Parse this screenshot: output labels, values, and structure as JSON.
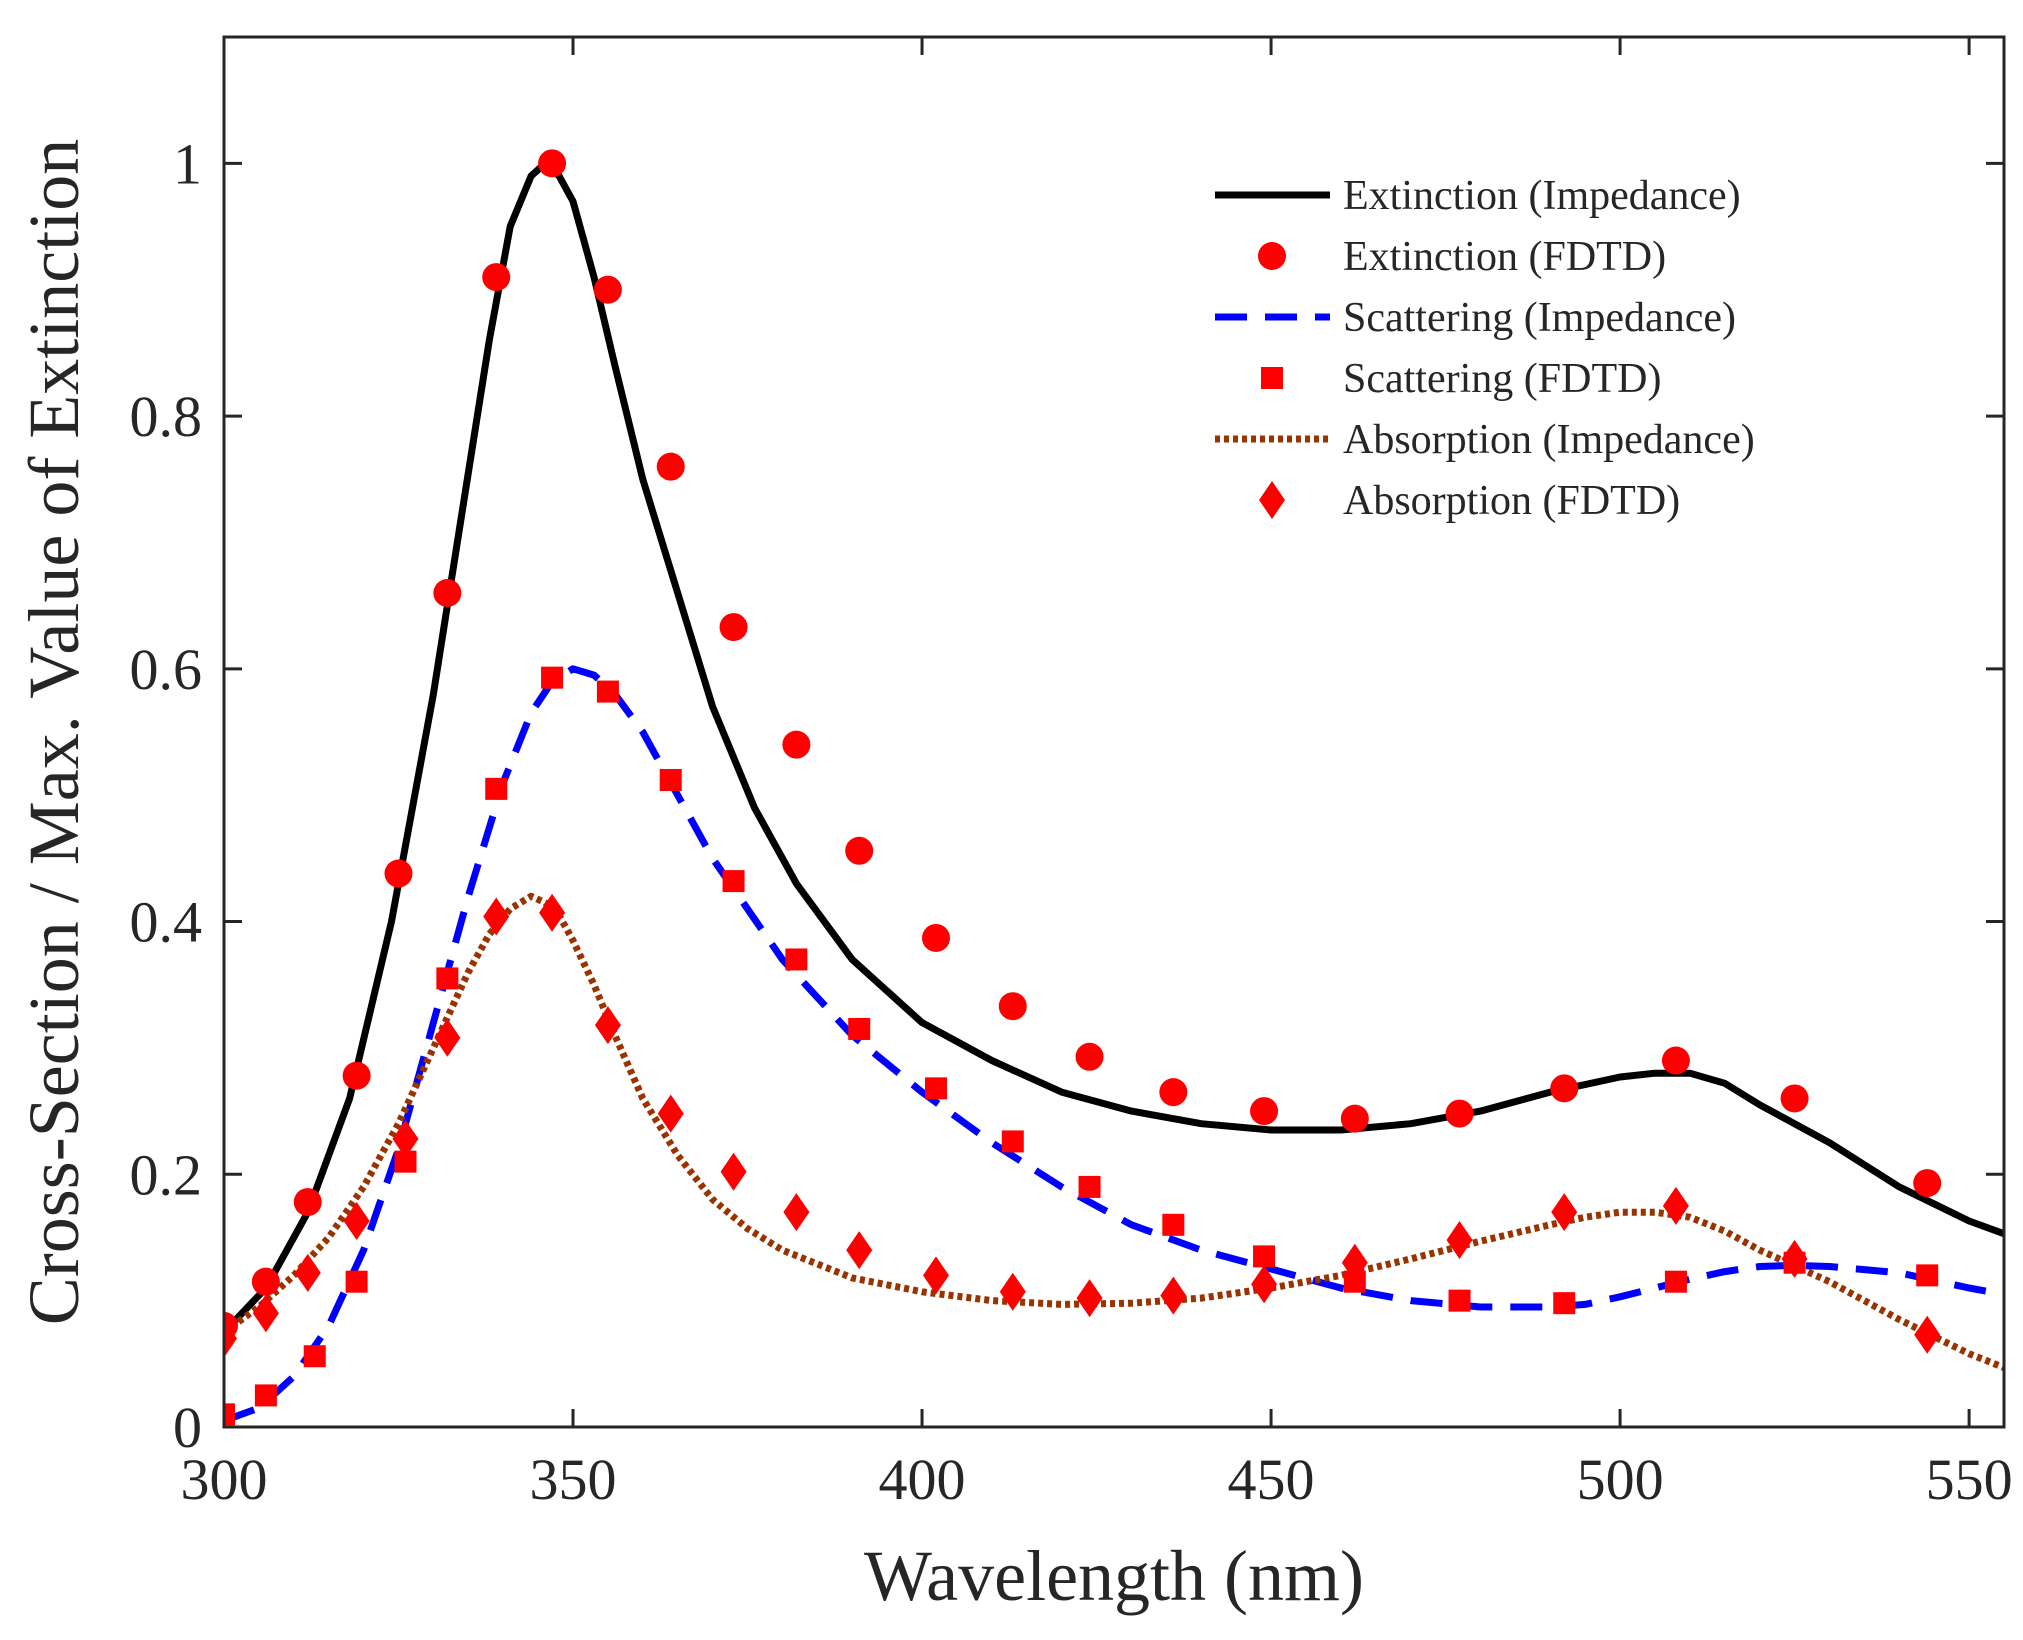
{
  "chart_data": {
    "type": "line",
    "title": "",
    "xlabel": "Wavelength (nm)",
    "ylabel": "Cross-Section / Max. Value of Extinction",
    "xlim": [
      300,
      555
    ],
    "ylim": [
      0,
      1.1
    ],
    "xticks": [
      300,
      350,
      400,
      450,
      500,
      550
    ],
    "xtick_labels": [
      "300",
      "350",
      "400",
      "450",
      "500",
      "550"
    ],
    "yticks": [
      0,
      0.2,
      0.4,
      0.6,
      0.8,
      1
    ],
    "ytick_labels": [
      "0",
      "0.2",
      "0.4",
      "0.6",
      "0.8",
      "1"
    ],
    "grid": false,
    "legend_position": "top-right",
    "series": [
      {
        "name": "Extinction (Impedance)",
        "kind": "line",
        "style": "solid",
        "color": "#000000",
        "x": [
          300,
          306,
          312,
          318,
          324,
          330,
          334,
          338,
          341,
          344,
          346,
          348,
          350,
          353,
          356,
          360,
          365,
          370,
          376,
          382,
          390,
          400,
          410,
          420,
          430,
          440,
          450,
          460,
          470,
          480,
          490,
          500,
          505,
          510,
          515,
          520,
          530,
          540,
          550,
          555
        ],
        "y": [
          0.075,
          0.11,
          0.17,
          0.26,
          0.4,
          0.58,
          0.72,
          0.86,
          0.95,
          0.99,
          1.0,
          0.99,
          0.97,
          0.91,
          0.84,
          0.75,
          0.66,
          0.57,
          0.49,
          0.43,
          0.37,
          0.32,
          0.29,
          0.265,
          0.25,
          0.24,
          0.235,
          0.235,
          0.24,
          0.25,
          0.265,
          0.277,
          0.28,
          0.28,
          0.272,
          0.255,
          0.225,
          0.19,
          0.163,
          0.153
        ]
      },
      {
        "name": "Extinction (FDTD)",
        "kind": "scatter",
        "marker": "circle",
        "color": "#ff0000",
        "x": [
          300,
          306,
          312,
          319,
          325,
          332,
          339,
          347,
          355,
          364,
          373,
          382,
          391,
          402,
          413,
          424,
          436,
          449,
          462,
          477,
          492,
          508,
          525,
          544
        ],
        "y": [
          0.08,
          0.115,
          0.178,
          0.278,
          0.438,
          0.66,
          0.91,
          1.0,
          0.9,
          0.76,
          0.633,
          0.54,
          0.456,
          0.387,
          0.333,
          0.293,
          0.265,
          0.25,
          0.244,
          0.248,
          0.268,
          0.29,
          0.26,
          0.193
        ]
      },
      {
        "name": "Scattering (Impedance)",
        "kind": "line",
        "style": "dashed",
        "color": "#0000ff",
        "x": [
          300,
          305,
          310,
          315,
          320,
          325,
          330,
          335,
          340,
          344,
          347,
          350,
          353,
          356,
          360,
          365,
          370,
          375,
          380,
          390,
          400,
          410,
          420,
          430,
          440,
          450,
          460,
          470,
          480,
          490,
          495,
          500,
          505,
          510,
          515,
          520,
          525,
          530,
          540,
          550,
          555
        ],
        "y": [
          0.005,
          0.015,
          0.04,
          0.08,
          0.14,
          0.22,
          0.32,
          0.42,
          0.51,
          0.565,
          0.59,
          0.6,
          0.595,
          0.58,
          0.55,
          0.5,
          0.45,
          0.41,
          0.37,
          0.31,
          0.265,
          0.225,
          0.19,
          0.16,
          0.14,
          0.125,
          0.11,
          0.1,
          0.095,
          0.095,
          0.097,
          0.103,
          0.11,
          0.117,
          0.123,
          0.127,
          0.128,
          0.127,
          0.122,
          0.11,
          0.105
        ]
      },
      {
        "name": "Scattering (FDTD)",
        "kind": "scatter",
        "marker": "square",
        "color": "#ff0000",
        "x": [
          300,
          306,
          313,
          319,
          326,
          332,
          339,
          347,
          355,
          364,
          373,
          382,
          391,
          402,
          413,
          424,
          436,
          449,
          462,
          477,
          492,
          508,
          525,
          544
        ],
        "y": [
          0.01,
          0.025,
          0.056,
          0.115,
          0.21,
          0.355,
          0.505,
          0.593,
          0.582,
          0.512,
          0.432,
          0.37,
          0.315,
          0.268,
          0.226,
          0.19,
          0.16,
          0.135,
          0.115,
          0.1,
          0.098,
          0.115,
          0.13,
          0.12
        ]
      },
      {
        "name": "Absorption (Impedance)",
        "kind": "line",
        "style": "dotted",
        "color": "#993300",
        "x": [
          300,
          305,
          310,
          315,
          320,
          325,
          330,
          335,
          338,
          341,
          344,
          346,
          348,
          350,
          353,
          356,
          360,
          365,
          370,
          375,
          380,
          390,
          400,
          410,
          420,
          430,
          440,
          450,
          460,
          470,
          480,
          490,
          495,
          500,
          505,
          510,
          515,
          520,
          530,
          540,
          550,
          555
        ],
        "y": [
          0.075,
          0.095,
          0.12,
          0.15,
          0.19,
          0.24,
          0.3,
          0.36,
          0.39,
          0.41,
          0.42,
          0.415,
          0.405,
          0.385,
          0.35,
          0.31,
          0.26,
          0.215,
          0.18,
          0.157,
          0.14,
          0.118,
          0.107,
          0.1,
          0.097,
          0.098,
          0.102,
          0.11,
          0.12,
          0.133,
          0.147,
          0.16,
          0.166,
          0.17,
          0.17,
          0.166,
          0.155,
          0.14,
          0.115,
          0.085,
          0.058,
          0.047
        ]
      },
      {
        "name": "Absorption (FDTD)",
        "kind": "scatter",
        "marker": "diamond",
        "color": "#ff0000",
        "x": [
          300,
          306,
          312,
          319,
          326,
          332,
          339,
          347,
          355,
          364,
          373,
          382,
          391,
          402,
          413,
          424,
          436,
          449,
          462,
          477,
          492,
          508,
          525,
          544
        ],
        "y": [
          0.07,
          0.09,
          0.122,
          0.163,
          0.228,
          0.308,
          0.404,
          0.407,
          0.318,
          0.248,
          0.202,
          0.17,
          0.14,
          0.12,
          0.107,
          0.102,
          0.104,
          0.113,
          0.13,
          0.148,
          0.17,
          0.175,
          0.133,
          0.073
        ]
      }
    ]
  }
}
